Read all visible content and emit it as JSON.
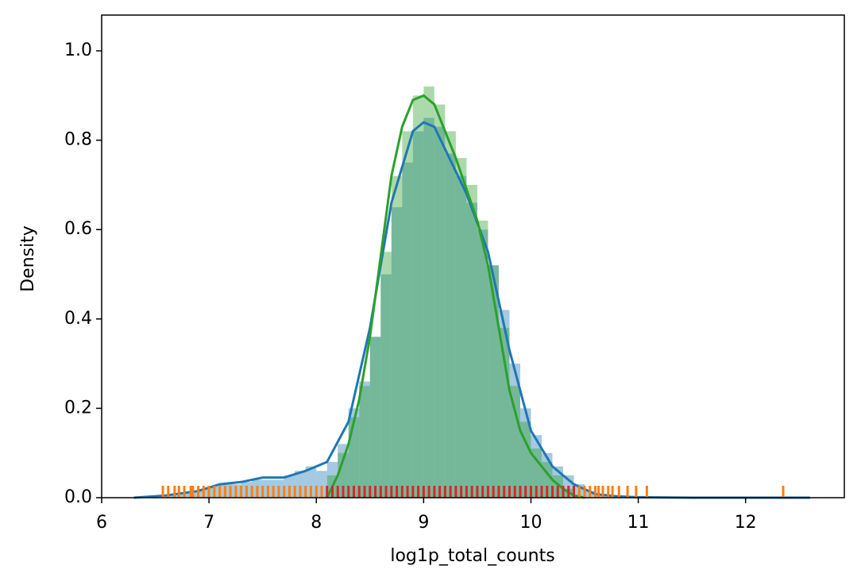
{
  "chart_data": {
    "type": "histogram",
    "xlabel": "log1p_total_counts",
    "ylabel": "Density",
    "xlim": [
      6.0,
      12.92
    ],
    "ylim": [
      0,
      1.08
    ],
    "xticks": [
      6,
      7,
      8,
      9,
      10,
      11,
      12
    ],
    "yticks": [
      {
        "value": 0,
        "label": "0.0"
      },
      0.2,
      0.4,
      0.6,
      0.8,
      {
        "value": 1,
        "label": "1.0"
      }
    ],
    "histograms": [
      {
        "color": "#1f77b4",
        "bins": [
          6.5,
          6.6,
          6.7,
          6.8,
          6.9,
          7.0,
          7.1,
          7.2,
          7.3,
          7.4,
          7.5,
          7.6,
          7.7,
          7.8,
          7.9,
          8.0,
          8.1,
          8.2,
          8.3,
          8.4,
          8.5,
          8.6,
          8.7,
          8.8,
          8.9,
          9.0,
          9.1,
          9.2,
          9.3,
          9.4,
          9.5,
          9.6,
          9.7,
          9.8,
          9.9,
          10.0,
          10.1,
          10.2,
          10.3,
          10.4,
          10.5,
          10.6,
          10.7,
          10.8,
          10.9
        ],
        "values": [
          0,
          0.005,
          0.01,
          0.015,
          0.02,
          0.025,
          0.03,
          0.03,
          0.035,
          0.04,
          0.04,
          0.04,
          0.05,
          0.06,
          0.07,
          0.06,
          0.08,
          0.12,
          0.2,
          0.26,
          0.36,
          0.5,
          0.65,
          0.75,
          0.82,
          0.85,
          0.83,
          0.77,
          0.72,
          0.66,
          0.6,
          0.52,
          0.42,
          0.3,
          0.2,
          0.14,
          0.1,
          0.07,
          0.05,
          0.03,
          0.015,
          0.008,
          0.004,
          0.002
        ]
      },
      {
        "color": "#2ca02c",
        "bins": [
          8.1,
          8.2,
          8.3,
          8.4,
          8.5,
          8.6,
          8.7,
          8.8,
          8.9,
          9.0,
          9.1,
          9.2,
          9.3,
          9.4,
          9.5,
          9.6,
          9.7,
          9.8,
          9.9,
          10.0,
          10.1,
          10.2,
          10.3,
          10.4
        ],
        "values": [
          0.05,
          0.1,
          0.18,
          0.25,
          0.36,
          0.55,
          0.72,
          0.82,
          0.9,
          0.92,
          0.88,
          0.82,
          0.76,
          0.7,
          0.62,
          0.52,
          0.38,
          0.25,
          0.17,
          0.11,
          0.08,
          0.05,
          0.02
        ]
      }
    ],
    "kde": [
      {
        "color": "#1f77b4",
        "x": [
          6.3,
          6.6,
          6.9,
          7.1,
          7.3,
          7.5,
          7.7,
          7.9,
          8.0,
          8.1,
          8.3,
          8.5,
          8.7,
          8.9,
          9.0,
          9.1,
          9.2,
          9.4,
          9.6,
          9.8,
          10.0,
          10.2,
          10.4,
          10.6,
          10.8,
          11.0,
          11.5,
          12.0,
          12.6
        ],
        "values": [
          0,
          0.005,
          0.015,
          0.03,
          0.035,
          0.045,
          0.045,
          0.06,
          0.07,
          0.08,
          0.17,
          0.38,
          0.66,
          0.82,
          0.84,
          0.83,
          0.78,
          0.68,
          0.55,
          0.33,
          0.15,
          0.07,
          0.03,
          0.008,
          0.003,
          0.001,
          0,
          0,
          0
        ]
      },
      {
        "color": "#2ca02c",
        "x": [
          8.1,
          8.2,
          8.3,
          8.4,
          8.5,
          8.6,
          8.7,
          8.8,
          8.9,
          9.0,
          9.1,
          9.2,
          9.3,
          9.4,
          9.5,
          9.6,
          9.7,
          9.8,
          9.9,
          10.0,
          10.1,
          10.2,
          10.3,
          10.4,
          10.5
        ],
        "values": [
          0,
          0.05,
          0.12,
          0.22,
          0.36,
          0.54,
          0.72,
          0.83,
          0.89,
          0.9,
          0.88,
          0.82,
          0.76,
          0.69,
          0.62,
          0.52,
          0.38,
          0.24,
          0.15,
          0.1,
          0.07,
          0.04,
          0.02,
          0.005,
          0
        ]
      }
    ],
    "rugs": [
      {
        "color": "#ff7f0e",
        "x": [
          6.57,
          6.62,
          6.68,
          6.72,
          6.77,
          6.83,
          6.85,
          6.9,
          6.95,
          7.0,
          7.05,
          7.1,
          7.15,
          7.2,
          7.25,
          7.3,
          7.35,
          7.4,
          7.45,
          7.5,
          7.55,
          7.6,
          7.65,
          7.7,
          7.75,
          7.8,
          7.85,
          7.9,
          7.95,
          8.0,
          8.05,
          10.4,
          10.45,
          10.5,
          10.55,
          10.6,
          10.63,
          10.67,
          10.72,
          10.76,
          10.82,
          10.9,
          10.98,
          11.08,
          12.35
        ]
      },
      {
        "color": "#d62728",
        "x": [
          8.1,
          8.15,
          8.2,
          8.25,
          8.3,
          8.35,
          8.4,
          8.45,
          8.5,
          8.55,
          8.6,
          8.65,
          8.7,
          8.75,
          8.8,
          8.85,
          8.9,
          8.95,
          9.0,
          9.05,
          9.1,
          9.15,
          9.2,
          9.25,
          9.3,
          9.35,
          9.4,
          9.45,
          9.5,
          9.55,
          9.6,
          9.65,
          9.7,
          9.75,
          9.8,
          9.85,
          9.9,
          9.95,
          10.0,
          10.05,
          10.1,
          10.15,
          10.2,
          10.25,
          10.3,
          10.35,
          10.4
        ]
      }
    ]
  }
}
